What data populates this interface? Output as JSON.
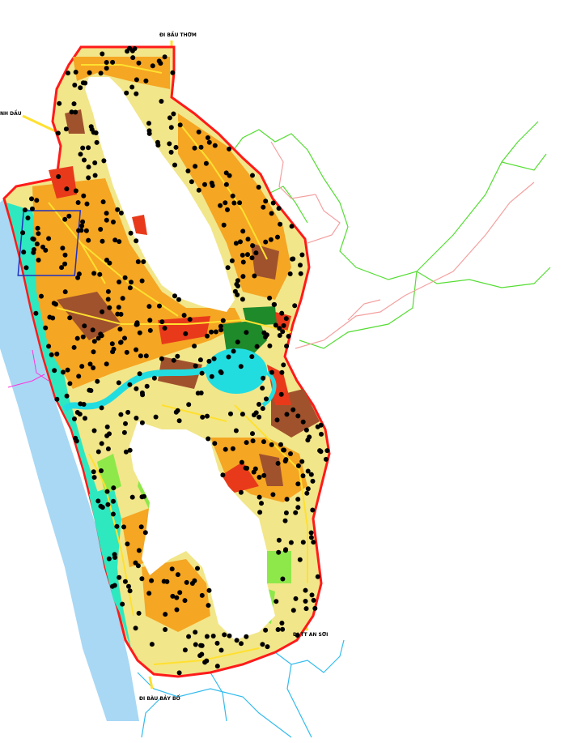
{
  "map": {
    "labels": {
      "north": "ĐI BẦU THƠM",
      "northwest": "NH DẦU",
      "southeast": "ĐI TT AN SƠI",
      "south": "ĐI BÀU BẢY BỐ"
    },
    "colors": {
      "boundary": "#ff1a1a",
      "sea": "#a8d8f4",
      "coastal_green": "#2ee8c0",
      "residential": "#f2e68a",
      "residential_dense": "#f5a623",
      "commercial": "#e83a1a",
      "mixed": "#a0522d",
      "park": "#1e8a2a",
      "light_green": "#8ee84a",
      "water": "#22dde0",
      "road": "#ffe030",
      "rural_boundary": "#55dd33",
      "rural_road": "#f4a0a0",
      "stream": "#33bbee",
      "tree_symbol": "#000000"
    }
  }
}
